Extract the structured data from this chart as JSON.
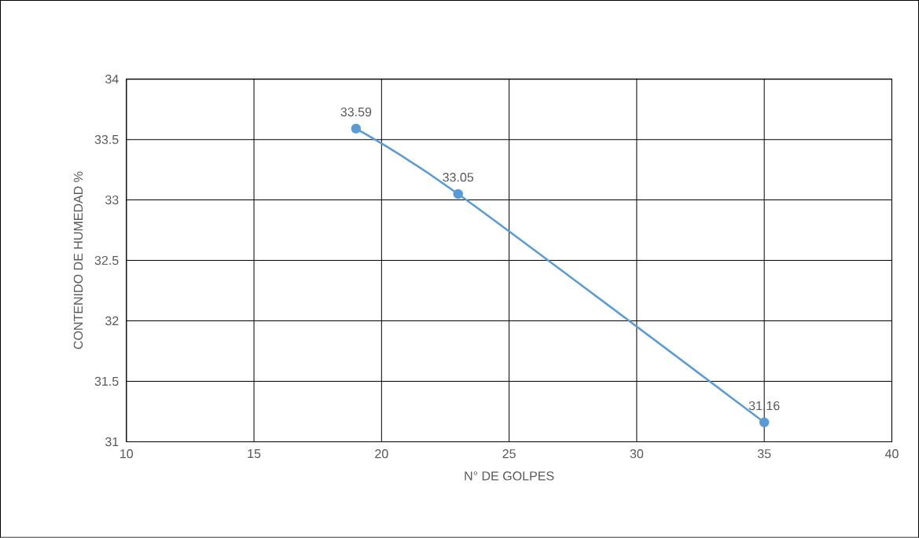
{
  "chart_data": {
    "type": "line",
    "xlabel": "N° DE GOLPES",
    "ylabel": "CONTENIDO DE HUMEDAD %",
    "x": [
      19,
      23,
      35
    ],
    "series": [
      {
        "color": "#5b9bd5",
        "values": [
          33.59,
          33.05,
          31.16
        ]
      }
    ],
    "xlim": [
      10,
      40
    ],
    "xticks": [
      10,
      15,
      20,
      25,
      30,
      35,
      40
    ],
    "ylim": [
      31,
      34
    ],
    "yticks": [
      31,
      31.5,
      32,
      32.5,
      33,
      33.5,
      34
    ],
    "grid": true,
    "marker": "circle",
    "line_style": "solid",
    "data_labels": true
  }
}
